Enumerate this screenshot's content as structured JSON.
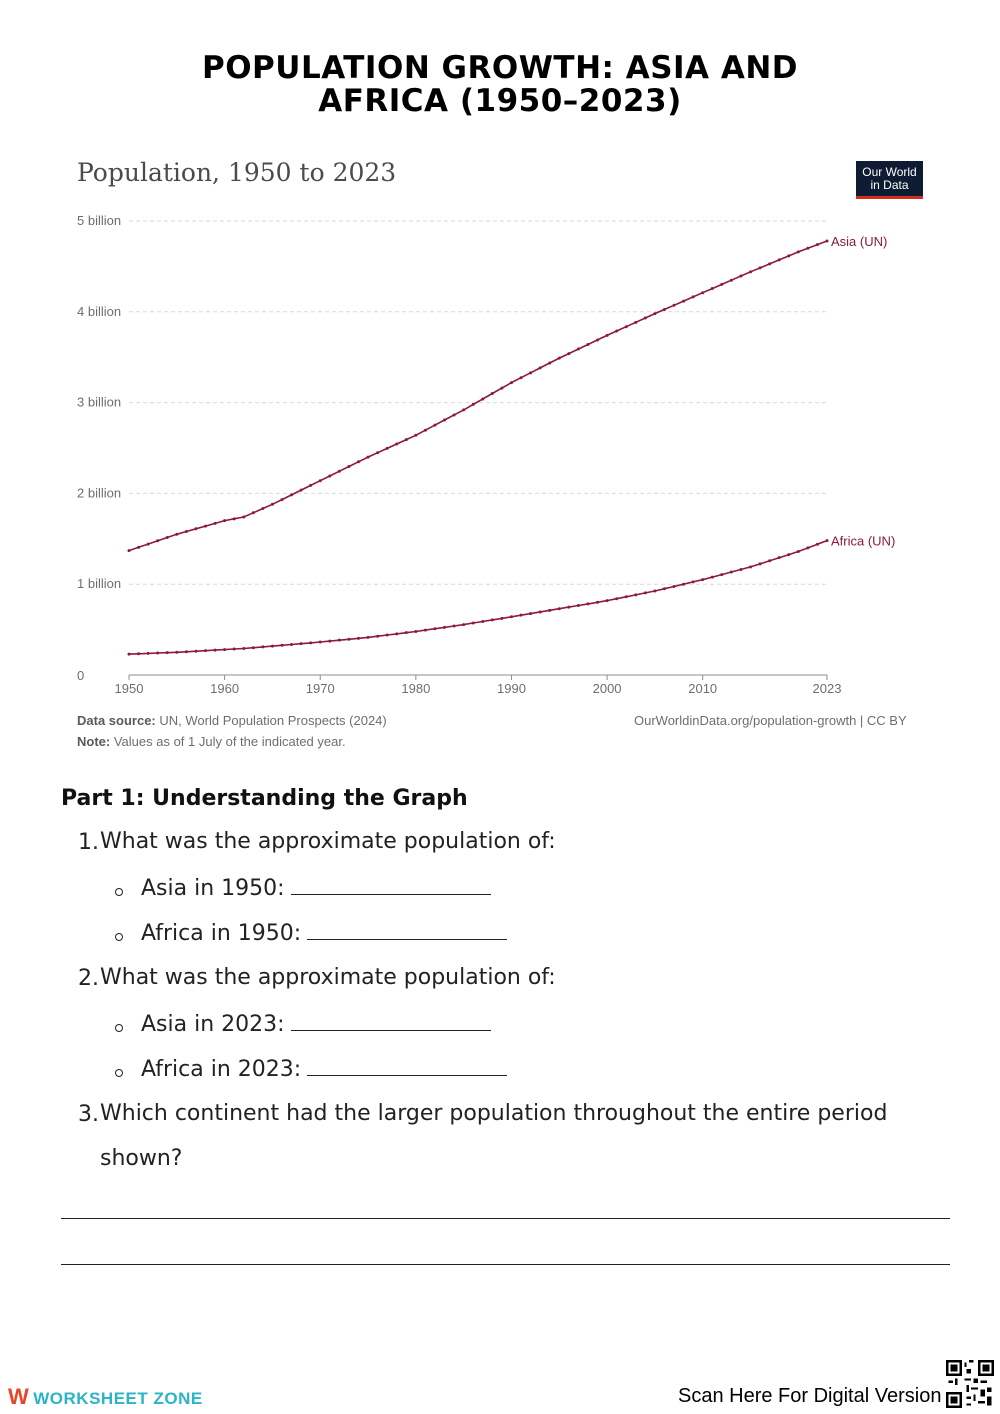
{
  "page": {
    "title": "POPULATION GROWTH: ASIA AND AFRICA (1950–2023)"
  },
  "chart": {
    "title": "Population, 1950 to 2023",
    "logo_line1": "Our World",
    "logo_line2": "in Data",
    "source_label": "Data source:",
    "source_text": "UN, World Population Prospects (2024)",
    "url_text": "OurWorldinData.org/population-growth | CC BY",
    "note_label": "Note:",
    "note_text": "Values as of 1 July of the indicated year."
  },
  "chart_data": {
    "type": "line",
    "title": "Population, 1950 to 2023",
    "xlabel": "",
    "ylabel": "",
    "xlim": [
      1950,
      2023
    ],
    "ylim": [
      0,
      5000000000
    ],
    "x_ticks": [
      {
        "value": 1950,
        "label": "1950"
      },
      {
        "value": 1960,
        "label": "1960"
      },
      {
        "value": 1970,
        "label": "1970"
      },
      {
        "value": 1980,
        "label": "1980"
      },
      {
        "value": 1990,
        "label": "1990"
      },
      {
        "value": 2000,
        "label": "2000"
      },
      {
        "value": 2010,
        "label": "2010"
      },
      {
        "value": 2023,
        "label": "2023"
      }
    ],
    "y_ticks": [
      {
        "value": 0,
        "label": "0"
      },
      {
        "value": 1000000000,
        "label": "1 billion"
      },
      {
        "value": 2000000000,
        "label": "2 billion"
      },
      {
        "value": 3000000000,
        "label": "3 billion"
      },
      {
        "value": 4000000000,
        "label": "4 billion"
      },
      {
        "value": 5000000000,
        "label": "5 billion"
      }
    ],
    "grid": true,
    "color": "#8b1a3e",
    "x": [
      1950,
      1955,
      1960,
      1962,
      1965,
      1970,
      1975,
      1980,
      1985,
      1990,
      1995,
      2000,
      2005,
      2010,
      2015,
      2020,
      2023
    ],
    "series": [
      {
        "name": "Asia (UN)",
        "values": [
          1370000000,
          1550000000,
          1700000000,
          1740000000,
          1880000000,
          2140000000,
          2400000000,
          2640000000,
          2920000000,
          3220000000,
          3490000000,
          3740000000,
          3980000000,
          4210000000,
          4440000000,
          4660000000,
          4780000000
        ]
      },
      {
        "name": "Africa (UN)",
        "values": [
          230000000,
          250000000,
          280000000,
          292000000,
          318000000,
          363000000,
          414000000,
          479000000,
          555000000,
          641000000,
          730000000,
          819000000,
          925000000,
          1050000000,
          1190000000,
          1360000000,
          1480000000
        ]
      }
    ]
  },
  "worksheet": {
    "part_heading": "Part 1: Understanding the Graph",
    "q1_num": "1.",
    "q1_text": "What was the approximate population of:",
    "q1_a": "Asia in 1950:",
    "q1_b": "Africa in 1950:",
    "q2_num": "2.",
    "q2_text": "What was the approximate population of:",
    "q2_a": "Asia in 2023:",
    "q2_b": "Africa in 2023:",
    "q3_num": "3.",
    "q3_text": "Which continent had the larger population throughout the entire period shown?"
  },
  "footer": {
    "brand": "WORKSHEET ZONE",
    "brand_mark": "W",
    "scan_text": "Scan Here For Digital Version"
  }
}
